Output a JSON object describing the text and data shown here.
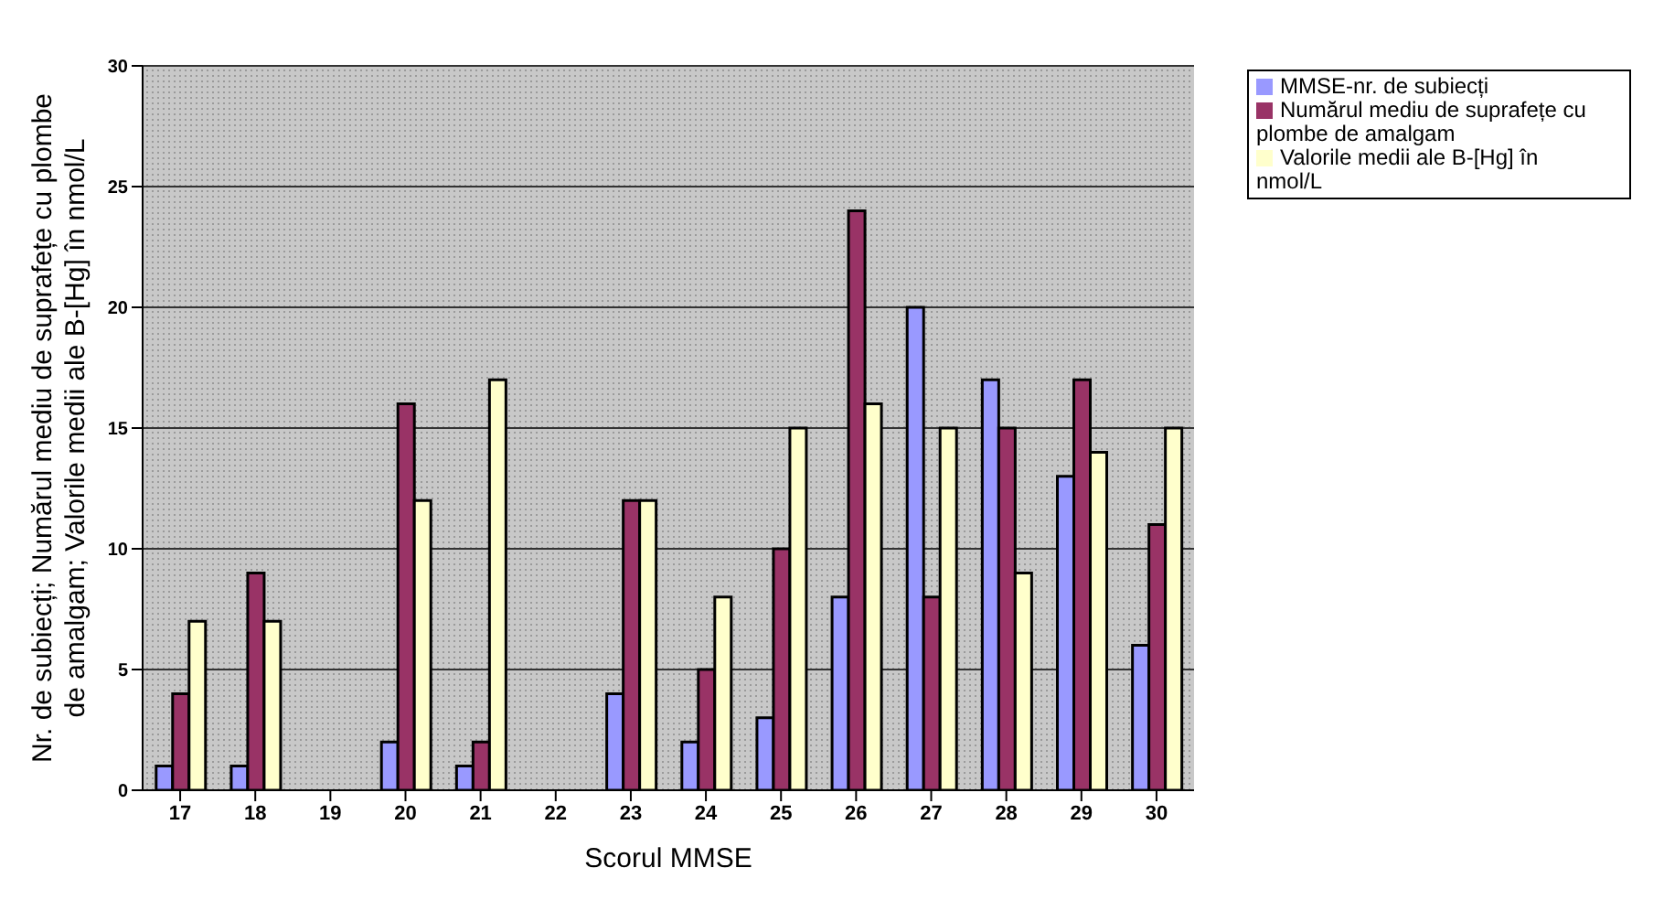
{
  "chart_data": {
    "type": "bar",
    "xlabel": "Scorul MMSE",
    "ylabel": "Nr. de subiecți; Numărul mediu de suprafețe cu plombe de amalgam; Valorile medii ale B-[Hg] în nmol/L",
    "categories": [
      "17",
      "18",
      "19",
      "20",
      "21",
      "22",
      "23",
      "24",
      "25",
      "26",
      "27",
      "28",
      "29",
      "30"
    ],
    "series": [
      {
        "name": "MMSE-nr. de subiecți",
        "color": "#9999ff",
        "values": [
          1,
          1,
          null,
          2,
          1,
          null,
          4,
          2,
          3,
          8,
          20,
          17,
          13,
          6
        ]
      },
      {
        "name": "Numărul mediu de suprafețe cu plombe de amalgam",
        "color": "#993366",
        "values": [
          4,
          9,
          null,
          16,
          2,
          null,
          12,
          5,
          10,
          24,
          8,
          15,
          17,
          11
        ]
      },
      {
        "name": "Valorile medii ale B-[Hg] în nmol/L",
        "color": "#ffffcc",
        "values": [
          7,
          7,
          null,
          12,
          17,
          null,
          12,
          8,
          15,
          16,
          15,
          9,
          14,
          15
        ]
      }
    ],
    "ylim": [
      0,
      30
    ],
    "yticks": [
      0,
      5,
      10,
      15,
      20,
      25,
      30
    ],
    "grid": "y",
    "legend": "top right"
  }
}
